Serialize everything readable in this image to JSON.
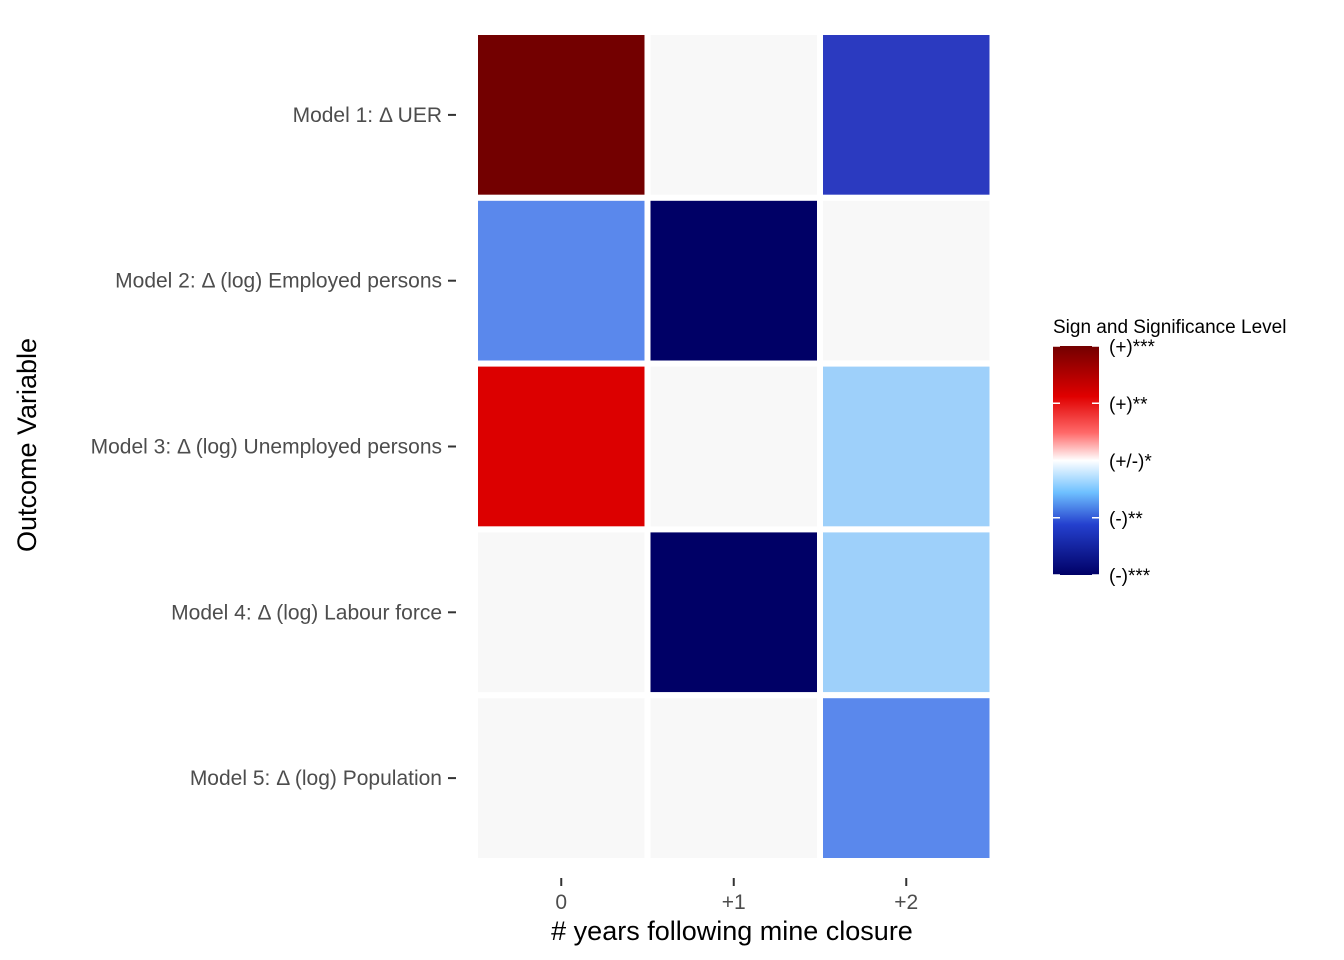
{
  "chart_data": {
    "type": "heatmap",
    "title": "",
    "xlabel": "# years following mine closure",
    "ylabel": "Outcome Variable",
    "x_categories": [
      "0",
      "+1",
      "+2"
    ],
    "y_categories": [
      "Model 1: Δ UER",
      "Model 2: Δ (log) Employed persons",
      "Model 3: Δ (log) Unemployed persons",
      "Model 4: Δ (log) Labour force",
      "Model 5: Δ (log) Population"
    ],
    "scale": [
      -3,
      3
    ],
    "values": [
      [
        3,
        0,
        -2
      ],
      [
        -1.5,
        -3,
        0
      ],
      [
        2,
        0,
        -0.5
      ],
      [
        0,
        -3,
        -0.5
      ],
      [
        0,
        0,
        -1.5
      ]
    ],
    "legend": {
      "title": "Sign and Significance Level",
      "placement": "right",
      "labels": [
        {
          "label": "(+)***",
          "value": 3
        },
        {
          "label": "(+)**",
          "value": 1.5
        },
        {
          "label": "(+/-)*",
          "value": 0
        },
        {
          "label": "(-)**",
          "value": -1.5
        },
        {
          "label": "(-)***",
          "value": -3
        }
      ]
    },
    "colors": {
      "neutral_cell": "#f8f8f8",
      "gradient": [
        "#730000",
        "#e00000",
        "#ff5f5f",
        "#ffffff",
        "#6ec0ff",
        "#2440ce",
        "#000066"
      ]
    },
    "grid": false
  }
}
